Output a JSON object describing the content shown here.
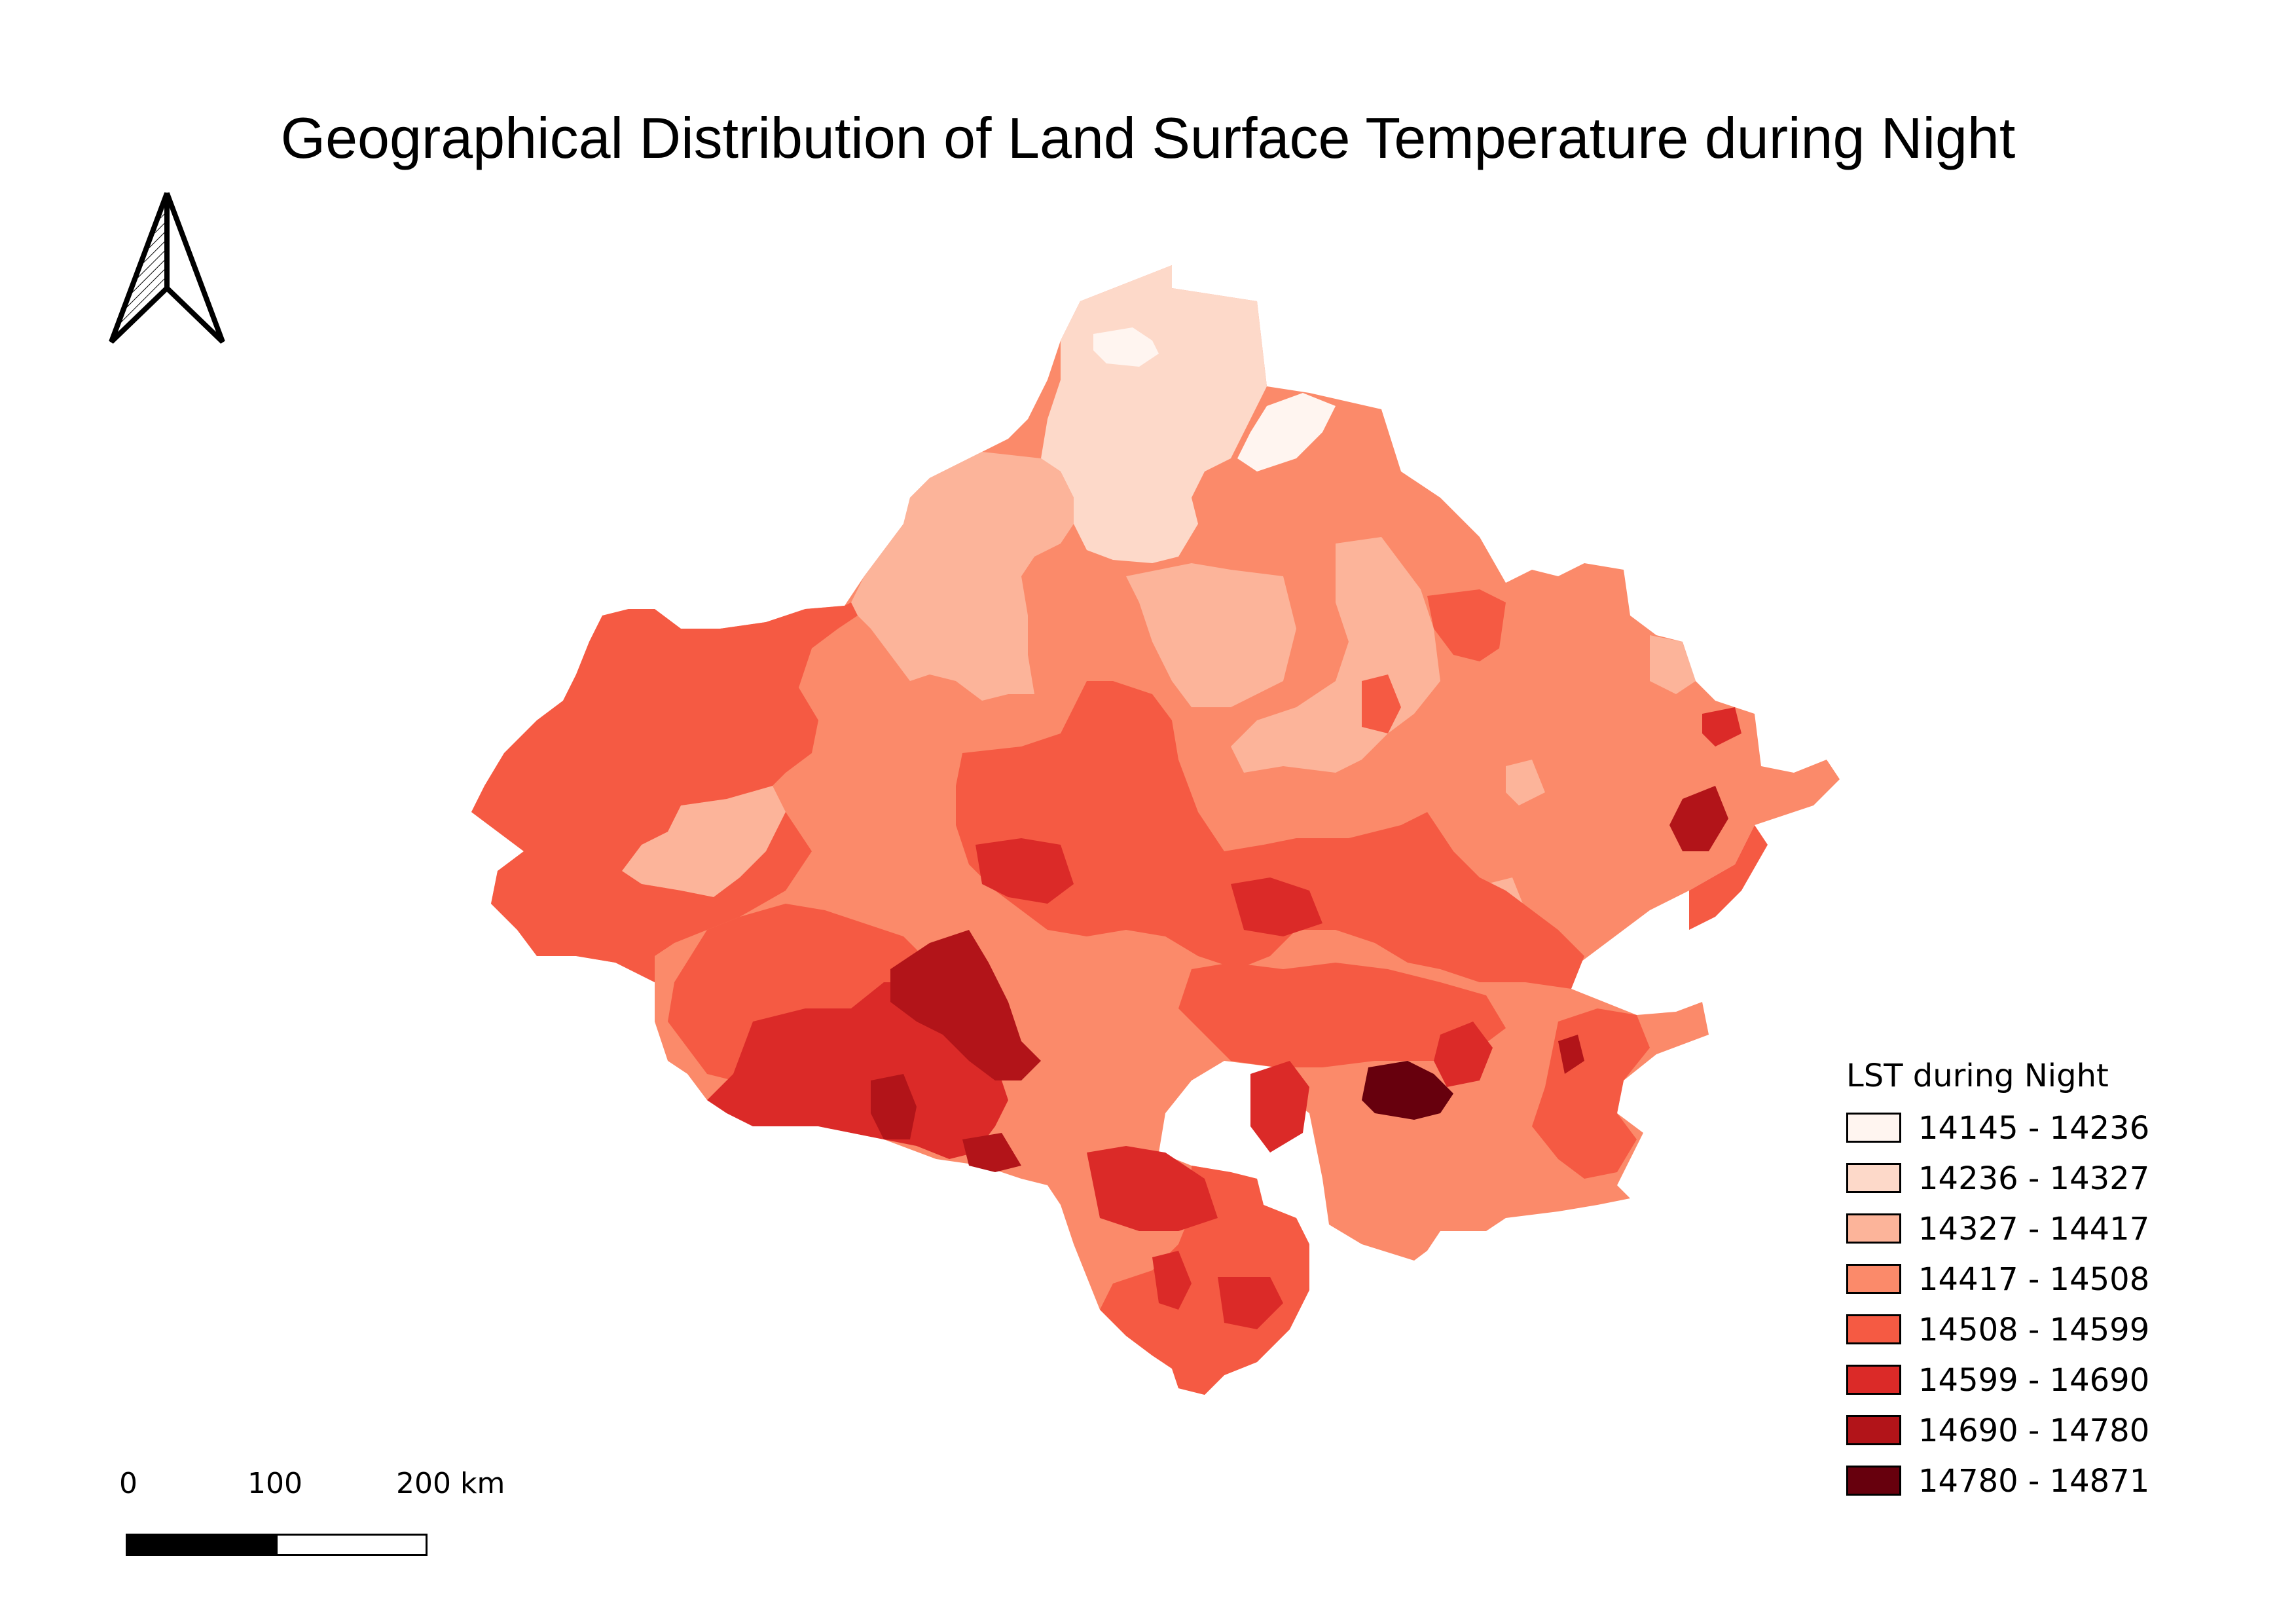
{
  "title": "Geographical Distribution of Land Surface Temperature during Night",
  "north_arrow": {
    "icon": "north-arrow-icon"
  },
  "legend": {
    "title": "LST during Night",
    "items": [
      {
        "label": "14145 - 14236",
        "color": "#fff5f0"
      },
      {
        "label": "14236 - 14327",
        "color": "#fdd9c9"
      },
      {
        "label": "14327 - 14417",
        "color": "#fcb49a"
      },
      {
        "label": "14417 - 14508",
        "color": "#fb8a6a"
      },
      {
        "label": "14508 - 14599",
        "color": "#f55a43"
      },
      {
        "label": "14599 - 14690",
        "color": "#db2a28"
      },
      {
        "label": "14690 - 14780",
        "color": "#b21419"
      },
      {
        "label": "14780 - 14871",
        "color": "#67000d"
      }
    ]
  },
  "scale_bar": {
    "labels": [
      "0",
      "100",
      "200 km"
    ]
  }
}
